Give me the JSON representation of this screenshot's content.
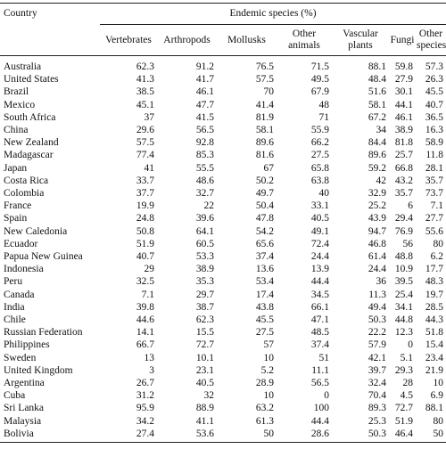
{
  "table": {
    "header": {
      "country": "Country",
      "group": "Endemic species (%)",
      "columns": [
        "Vertebrates",
        "Arthropods",
        "Mollusks",
        "Other animals",
        "Vascular plants",
        "Fungi",
        "Other species"
      ]
    },
    "rows": [
      [
        "Australia",
        62.3,
        91.2,
        76.5,
        71.5,
        88.1,
        59.8,
        57.3
      ],
      [
        "United States",
        41.3,
        41.7,
        57.5,
        49.5,
        48.4,
        27.9,
        26.3
      ],
      [
        "Brazil",
        38.5,
        46.1,
        70,
        67.9,
        51.6,
        30.1,
        45.5
      ],
      [
        "Mexico",
        45.1,
        47.7,
        41.4,
        48,
        58.1,
        44.1,
        40.7
      ],
      [
        "South Africa",
        37,
        41.5,
        81.9,
        71,
        67.2,
        46.1,
        36.5
      ],
      [
        "China",
        29.6,
        56.5,
        58.1,
        55.9,
        34,
        38.9,
        16.3
      ],
      [
        "New Zealand",
        57.5,
        92.8,
        89.6,
        66.2,
        84.4,
        81.8,
        58.9
      ],
      [
        "Madagascar",
        77.4,
        85.3,
        81.6,
        27.5,
        89.6,
        25.7,
        11.8
      ],
      [
        "Japan",
        41,
        55.5,
        67,
        65.8,
        59.2,
        66.8,
        28.1
      ],
      [
        "Costa Rica",
        33.7,
        48.6,
        50.2,
        63.8,
        42,
        43.2,
        35.7
      ],
      [
        "Colombia",
        37.7,
        32.7,
        49.7,
        40,
        32.9,
        35.7,
        73.7
      ],
      [
        "France",
        19.9,
        22,
        50.4,
        33.1,
        25.2,
        6,
        7.1
      ],
      [
        "Spain",
        24.8,
        39.6,
        47.8,
        40.5,
        43.9,
        29.4,
        27.7
      ],
      [
        "New Caledonia",
        50.8,
        64.1,
        54.2,
        49.1,
        94.7,
        76.9,
        55.6
      ],
      [
        "Ecuador",
        51.9,
        60.5,
        65.6,
        72.4,
        46.8,
        56,
        80
      ],
      [
        "Papua New Guinea",
        40.7,
        53.3,
        37.4,
        24.4,
        61.4,
        48.8,
        6.2
      ],
      [
        "Indonesia",
        29,
        38.9,
        13.6,
        13.9,
        24.4,
        10.9,
        17.7
      ],
      [
        "Peru",
        32.5,
        35.3,
        53.4,
        44.4,
        36,
        39.5,
        48.3
      ],
      [
        "Canada",
        7.1,
        29.7,
        17.4,
        34.5,
        11.3,
        25.4,
        19.7
      ],
      [
        "India",
        39.8,
        38.7,
        43.8,
        66.1,
        49.4,
        34.1,
        28.5
      ],
      [
        "Chile",
        44.6,
        62.3,
        45.5,
        47.1,
        50.3,
        44.8,
        44.3
      ],
      [
        "Russian Federation",
        14.1,
        15.5,
        27.5,
        48.5,
        22.2,
        12.3,
        51.8
      ],
      [
        "Philippines",
        66.7,
        72.7,
        57,
        37.4,
        57.9,
        0,
        15.4
      ],
      [
        "Sweden",
        13,
        10.1,
        10,
        51,
        42.1,
        5.1,
        23.4
      ],
      [
        "United Kingdom",
        3,
        23.1,
        5.2,
        11.1,
        39.7,
        29.3,
        21.9
      ],
      [
        "Argentina",
        26.7,
        40.5,
        28.9,
        56.5,
        32.4,
        28,
        10
      ],
      [
        "Cuba",
        31.2,
        32,
        10,
        0,
        70.4,
        4.5,
        6.9
      ],
      [
        "Sri Lanka",
        95.9,
        88.9,
        63.2,
        100,
        89.3,
        72.7,
        88.1
      ],
      [
        "Malaysia",
        34.2,
        41.1,
        61.3,
        44.4,
        25.3,
        51.9,
        80
      ],
      [
        "Bolivia",
        27.4,
        53.6,
        50,
        28.6,
        50.3,
        46.4,
        50
      ]
    ]
  }
}
